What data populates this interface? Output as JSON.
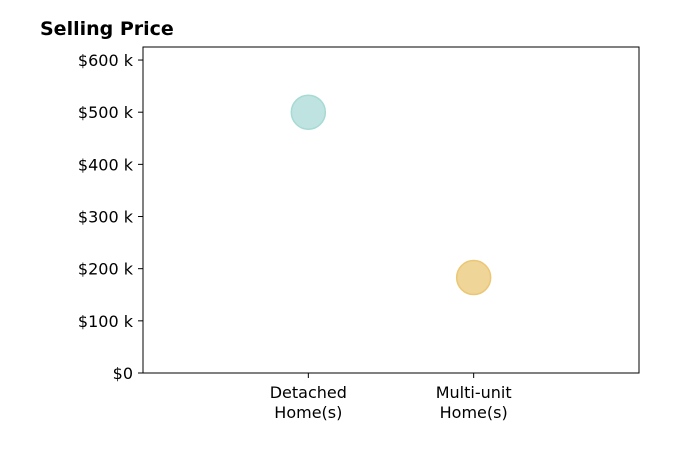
{
  "chart_data": {
    "type": "scatter",
    "title": "Selling Price",
    "xlabel": "",
    "ylabel": "",
    "categories": [
      [
        "Detached",
        "Home(s)"
      ],
      [
        "Multi-unit",
        "Home(s)"
      ]
    ],
    "points": [
      {
        "category": 0,
        "value": 500000,
        "color": "#a8dad5"
      },
      {
        "category": 1,
        "value": 183000,
        "color": "#ebc775"
      }
    ],
    "yticks": [
      {
        "value": 0,
        "label": "$0"
      },
      {
        "value": 100000,
        "label": "$100 k"
      },
      {
        "value": 200000,
        "label": "$200 k"
      },
      {
        "value": 300000,
        "label": "$300 k"
      },
      {
        "value": 400000,
        "label": "$400 k"
      },
      {
        "value": 500000,
        "label": "$500 k"
      },
      {
        "value": 600000,
        "label": "$600 k"
      }
    ],
    "ylim": [
      0,
      625000
    ],
    "xlim": [
      -1,
      2
    ],
    "grid": false,
    "legend": "none"
  }
}
